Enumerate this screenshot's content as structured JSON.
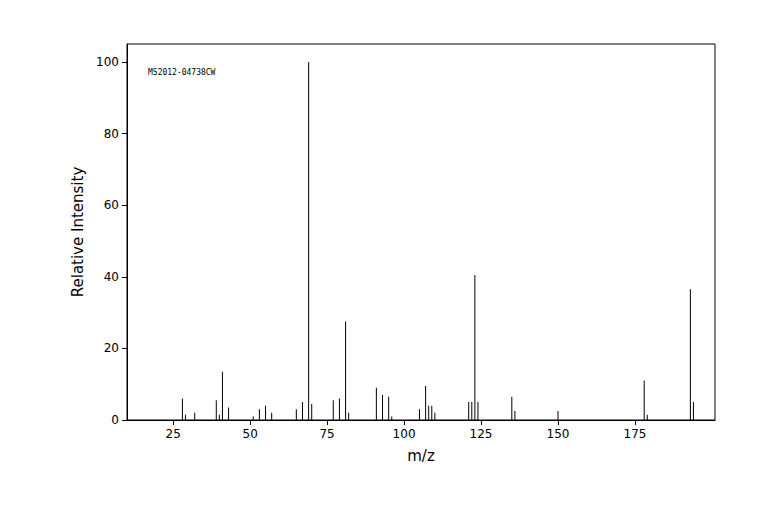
{
  "chart_data": {
    "type": "bar",
    "annotations": [
      "MS2012-04738CW"
    ],
    "x_label": "m/z",
    "y_label": "Relative Intensity",
    "x": [
      28,
      29,
      32,
      39,
      40,
      41,
      43,
      51,
      53,
      55,
      57,
      65,
      67,
      69,
      70,
      77,
      79,
      81,
      82,
      91,
      93,
      95,
      96,
      105,
      107,
      108,
      109,
      110,
      121,
      122,
      123,
      124,
      135,
      136,
      150,
      178,
      179,
      193,
      194
    ],
    "values": [
      6,
      1.5,
      2,
      5.5,
      1.5,
      13.5,
      3.5,
      1,
      3,
      4,
      2,
      3,
      5,
      100,
      4.5,
      5.5,
      6,
      27.5,
      2,
      9,
      7,
      6.5,
      1,
      3,
      9.5,
      4,
      4,
      2,
      5,
      5,
      40.5,
      5,
      6.5,
      2.5,
      2.5,
      11,
      1.5,
      36.5,
      5
    ],
    "color": "#000000",
    "xlim": [
      10,
      201
    ],
    "xticks": [
      25,
      50,
      75,
      100,
      125,
      150,
      175
    ],
    "ylim": [
      0,
      105
    ],
    "yticks": [
      0,
      20,
      40,
      60,
      80,
      100
    ],
    "grid": false
  }
}
